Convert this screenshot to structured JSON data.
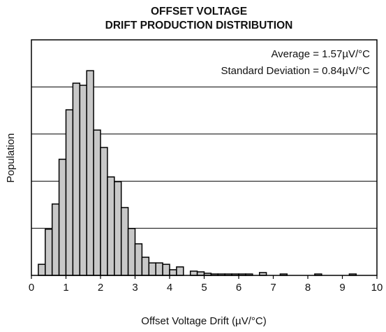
{
  "chart_data": {
    "type": "histogram",
    "title": [
      "OFFSET VOLTAGE",
      "DRIFT PRODUCTION DISTRIBUTION"
    ],
    "annotations": [
      "Average = 1.57µV/°C",
      "Standard Deviation = 0.84µV/°C"
    ],
    "x_label": "Offset Voltage Drift (µV/°C)",
    "y_label": "Population",
    "bins": [
      0.2,
      0.4,
      0.6,
      0.8,
      1.0,
      1.2,
      1.4,
      1.6,
      1.8,
      2.0,
      2.2,
      2.4,
      2.6,
      2.8,
      3.0,
      3.2,
      3.4,
      3.6,
      3.8,
      4.0,
      4.2,
      4.4,
      4.6,
      4.8,
      5.0,
      5.2,
      5.4,
      5.6,
      5.8,
      6.0,
      6.2,
      6.4,
      6.6,
      6.8,
      7.0,
      7.2,
      7.4,
      7.6,
      7.8,
      8.0,
      8.2,
      8.4,
      8.6,
      8.8,
      9.0,
      9.2,
      9.4
    ],
    "values": [
      4.7,
      19.6,
      30.3,
      49.3,
      70.3,
      81.6,
      80.7,
      86.9,
      61.7,
      54.3,
      41.8,
      39.8,
      28.8,
      19.9,
      13.4,
      7.7,
      5.3,
      5.3,
      4.7,
      2.4,
      3.6,
      0,
      1.8,
      1.5,
      0.9,
      0.6,
      0.6,
      0.6,
      0.6,
      0.6,
      0.6,
      0,
      1.2,
      0,
      0,
      0.6,
      0,
      0,
      0,
      0,
      0.6,
      0,
      0,
      0,
      0,
      0.6
    ],
    "color": "#c8c8c8",
    "xlim": [
      0,
      10
    ],
    "xticks": [
      0,
      1,
      2,
      3,
      4,
      5,
      6,
      7,
      8,
      9,
      10
    ],
    "ylim": [
      0,
      100
    ],
    "yticks": [
      20,
      40,
      60,
      80
    ],
    "grid": true
  }
}
